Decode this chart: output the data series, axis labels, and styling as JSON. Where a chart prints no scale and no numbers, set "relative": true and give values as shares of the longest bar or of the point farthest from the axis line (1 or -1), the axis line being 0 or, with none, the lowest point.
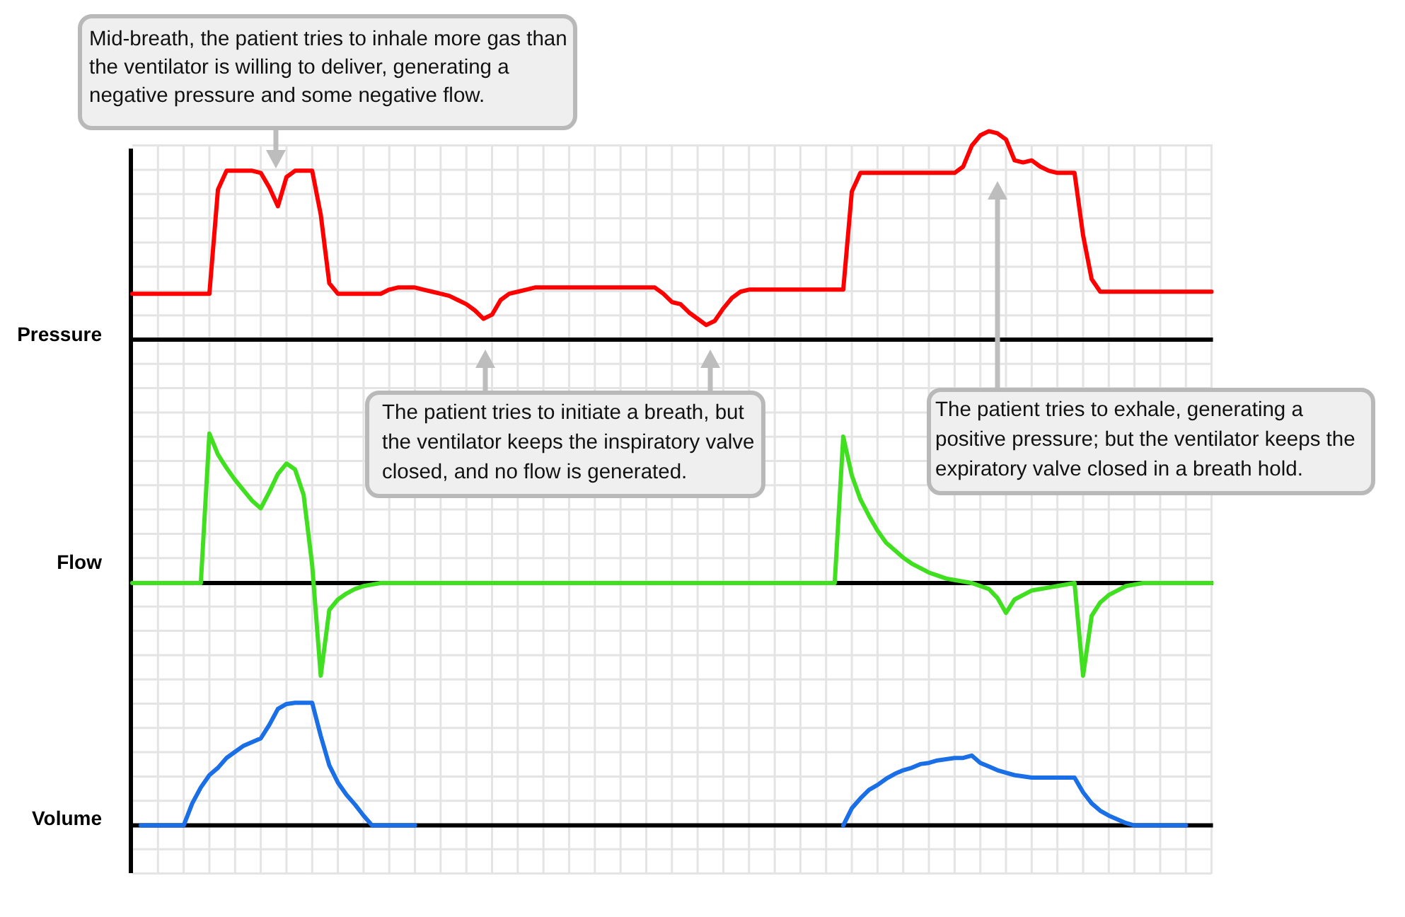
{
  "chart_data": [
    {
      "type": "line",
      "ylabel": "Pressure",
      "relative": true,
      "grid": true,
      "categories": [
        null,
        null,
        null,
        null,
        null,
        null,
        null,
        null,
        null,
        null,
        null,
        null,
        null,
        null,
        null,
        null,
        null,
        null,
        null,
        null,
        null,
        null,
        null,
        null,
        null,
        null,
        null,
        null,
        null,
        null,
        null,
        null,
        null,
        null,
        null,
        null,
        null,
        null,
        null,
        null,
        null,
        null,
        null,
        null,
        null,
        null,
        null,
        null,
        null,
        null,
        null,
        null,
        null,
        null,
        null,
        null,
        null,
        null,
        null,
        null,
        null,
        null,
        null,
        null,
        null,
        null,
        null,
        null,
        null,
        null,
        null,
        null,
        null,
        null,
        null,
        null,
        null,
        null,
        null,
        null,
        null,
        null,
        null,
        null,
        null,
        null,
        null,
        null,
        null,
        null,
        null,
        null,
        null,
        null,
        null,
        null,
        null,
        null,
        null,
        null,
        null,
        null,
        null,
        null,
        null,
        null,
        null,
        null,
        null,
        null,
        null,
        null,
        null,
        null,
        null,
        null,
        null,
        null,
        null,
        null,
        null,
        null,
        null,
        null,
        null,
        null,
        null
      ],
      "series": [
        {
          "color": "#ff0000",
          "values": [
            0.22,
            0.22,
            0.22,
            0.22,
            0.22,
            0.22,
            0.22,
            0.22,
            0.22,
            0.22,
            0.72,
            0.81,
            0.81,
            0.81,
            0.81,
            0.8,
            0.73,
            0.64,
            0.78,
            0.81,
            0.81,
            0.81,
            0.6,
            0.27,
            0.22,
            0.22,
            0.22,
            0.22,
            0.22,
            0.22,
            0.24,
            0.25,
            0.25,
            0.25,
            0.24,
            0.23,
            0.22,
            0.21,
            0.19,
            0.17,
            0.14,
            0.1,
            0.12,
            0.19,
            0.22,
            0.23,
            0.24,
            0.25,
            0.25,
            0.25,
            0.25,
            0.25,
            0.25,
            0.25,
            0.25,
            0.25,
            0.25,
            0.25,
            0.25,
            0.25,
            0.25,
            0.25,
            0.22,
            0.18,
            0.17,
            0.13,
            0.1,
            0.07,
            0.09,
            0.15,
            0.2,
            0.23,
            0.24,
            0.24,
            0.24,
            0.24,
            0.24,
            0.24,
            0.24,
            0.24,
            0.24,
            0.24,
            0.24,
            0.24,
            0.71,
            0.8,
            0.8,
            0.8,
            0.8,
            0.8,
            0.8,
            0.8,
            0.8,
            0.8,
            0.8,
            0.8,
            0.8,
            0.83,
            0.93,
            0.98,
            1.0,
            0.99,
            0.96,
            0.86,
            0.85,
            0.86,
            0.83,
            0.81,
            0.8,
            0.8,
            0.8,
            0.5,
            0.29,
            0.23,
            0.23,
            0.23,
            0.23,
            0.23,
            0.23,
            0.23,
            0.23,
            0.23,
            0.23,
            0.23,
            0.23,
            0.23,
            0.23
          ]
        }
      ],
      "annotations": [
        "Mid-breath, the patient tries to inhale more gas than the ventilator is willing to deliver, generating a negative pressure and some negative flow."
      ]
    },
    {
      "type": "line",
      "ylabel": "Flow",
      "relative": true,
      "grid": true,
      "categories": [
        null,
        null,
        null,
        null,
        null,
        null,
        null,
        null,
        null,
        null,
        null,
        null,
        null,
        null,
        null,
        null,
        null,
        null,
        null,
        null,
        null,
        null,
        null,
        null,
        null,
        null,
        null,
        null,
        null,
        null,
        null,
        null,
        null,
        null,
        null,
        null,
        null,
        null,
        null,
        null,
        null,
        null,
        null,
        null,
        null,
        null,
        null,
        null,
        null,
        null,
        null,
        null,
        null,
        null,
        null,
        null,
        null,
        null,
        null,
        null,
        null,
        null,
        null,
        null,
        null,
        null,
        null,
        null,
        null,
        null,
        null,
        null,
        null,
        null,
        null,
        null,
        null,
        null,
        null,
        null,
        null,
        null,
        null,
        null,
        null,
        null,
        null,
        null,
        null,
        null,
        null,
        null,
        null,
        null,
        null,
        null,
        null,
        null,
        null,
        null,
        null,
        null,
        null,
        null,
        null,
        null,
        null,
        null,
        null,
        null,
        null,
        null,
        null,
        null,
        null,
        null,
        null,
        null,
        null,
        null,
        null,
        null,
        null,
        null,
        null,
        null,
        null
      ],
      "series": [
        {
          "color": "#40e020",
          "values": [
            0,
            0,
            0,
            0,
            0,
            0,
            0,
            0,
            0,
            1.0,
            0.86,
            0.77,
            0.69,
            0.62,
            0.55,
            0.5,
            0.61,
            0.73,
            0.8,
            0.76,
            0.59,
            0.12,
            -0.62,
            -0.18,
            -0.11,
            -0.07,
            -0.04,
            -0.02,
            -0.01,
            0,
            0,
            0,
            0,
            0,
            0,
            0,
            0,
            0,
            0,
            0,
            0,
            0,
            0,
            0,
            0,
            0,
            0,
            0,
            0,
            0,
            0,
            0,
            0,
            0,
            0,
            0,
            0,
            0,
            0,
            0,
            0,
            0,
            0,
            0,
            0,
            0,
            0,
            0,
            0,
            0,
            0,
            0,
            0,
            0,
            0,
            0,
            0,
            0,
            0,
            0,
            0,
            0,
            0,
            0.98,
            0.72,
            0.56,
            0.45,
            0.35,
            0.27,
            0.22,
            0.17,
            0.13,
            0.1,
            0.07,
            0.05,
            0.03,
            0.02,
            0.01,
            0,
            -0.02,
            -0.04,
            -0.1,
            -0.2,
            -0.11,
            -0.08,
            -0.05,
            -0.04,
            -0.03,
            -0.02,
            -0.01,
            0,
            -0.62,
            -0.22,
            -0.13,
            -0.08,
            -0.05,
            -0.02,
            -0.01,
            0,
            0,
            0,
            0,
            0,
            0,
            0,
            0,
            0
          ]
        }
      ],
      "annotations": [
        "The patient tries to initiate a breath, but the ventilator keeps the inspiratory valve closed, and no flow is generated.",
        "The patient tries to exhale, generating a positive pressure; but the ventilator keeps the expiratory valve closed in a breath hold."
      ]
    },
    {
      "type": "line",
      "ylabel": "Volume",
      "relative": true,
      "grid": true,
      "categories": [
        null,
        null,
        null,
        null,
        null,
        null,
        null,
        null,
        null,
        null,
        null,
        null,
        null,
        null,
        null,
        null,
        null,
        null,
        null,
        null,
        null,
        null,
        null,
        null,
        null,
        null,
        null,
        null,
        null,
        null,
        null,
        null,
        null,
        null,
        null,
        null,
        null,
        null,
        null,
        null,
        null,
        null,
        null,
        null,
        null,
        null,
        null,
        null,
        null,
        null,
        null,
        null,
        null,
        null,
        null,
        null,
        null,
        null,
        null,
        null,
        null,
        null,
        null,
        null,
        null,
        null,
        null,
        null,
        null,
        null,
        null,
        null,
        null,
        null,
        null,
        null,
        null,
        null,
        null,
        null,
        null,
        null,
        null,
        null,
        null,
        null,
        null,
        null,
        null,
        null,
        null,
        null,
        null,
        null,
        null,
        null,
        null,
        null,
        null,
        null,
        null,
        null,
        null,
        null,
        null,
        null,
        null,
        null,
        null,
        null,
        null,
        null,
        null,
        null,
        null,
        null,
        null,
        null,
        null,
        null,
        null,
        null,
        null,
        null,
        null,
        null,
        null
      ],
      "series": [
        {
          "color": "#1a6ee6",
          "values": [
            null,
            0,
            0,
            0,
            0,
            0,
            0,
            0.18,
            0.31,
            0.41,
            0.47,
            0.55,
            0.6,
            0.65,
            0.68,
            0.71,
            0.82,
            0.95,
            0.99,
            1.0,
            1.0,
            1.0,
            0.73,
            0.49,
            0.35,
            0.25,
            0.17,
            0.08,
            0,
            0,
            0,
            0,
            0,
            0,
            null,
            null,
            null,
            null,
            null,
            null,
            null,
            null,
            null,
            null,
            null,
            null,
            null,
            null,
            null,
            null,
            null,
            null,
            null,
            null,
            null,
            null,
            null,
            null,
            null,
            null,
            null,
            null,
            null,
            null,
            null,
            null,
            null,
            null,
            null,
            null,
            null,
            null,
            null,
            null,
            null,
            null,
            null,
            null,
            null,
            null,
            null,
            null,
            null,
            0,
            0.14,
            0.22,
            0.29,
            0.33,
            0.38,
            0.42,
            0.45,
            0.47,
            0.5,
            0.51,
            0.53,
            0.54,
            0.55,
            0.55,
            0.57,
            0.51,
            0.48,
            0.45,
            0.43,
            0.41,
            0.4,
            0.39,
            0.39,
            0.39,
            0.39,
            0.39,
            0.39,
            0.27,
            0.18,
            0.12,
            0.08,
            0.05,
            0.02,
            0,
            0,
            0,
            0,
            0,
            0,
            0,
            null,
            null,
            null
          ]
        }
      ]
    }
  ]
}
